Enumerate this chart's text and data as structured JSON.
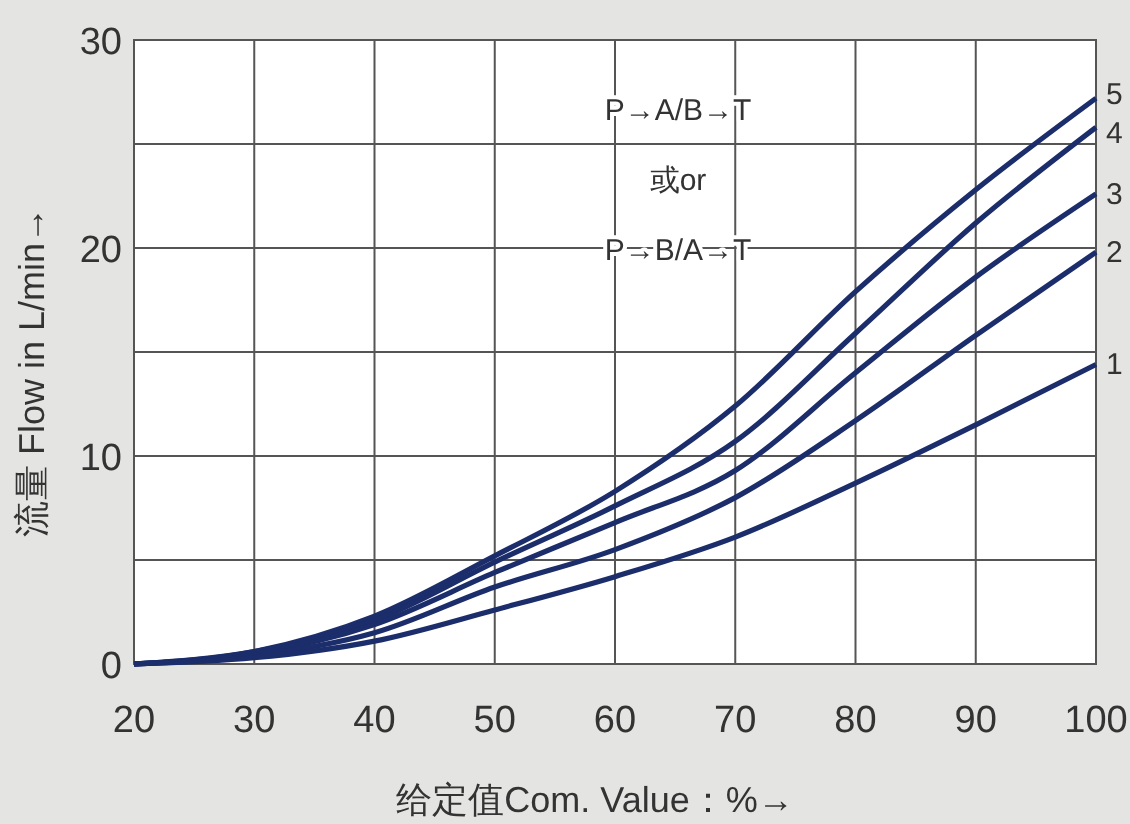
{
  "chart_data": {
    "type": "line",
    "xlabel": "给定值Com. Value：%→",
    "ylabel": "流量 Flow in L/min→",
    "x": [
      20,
      30,
      40,
      50,
      60,
      70,
      80,
      90,
      100
    ],
    "series": [
      {
        "name": "5",
        "color": "#1c2d6b",
        "values": [
          0,
          0.6,
          2.3,
          5.2,
          8.3,
          12.4,
          17.9,
          22.8,
          27.2
        ]
      },
      {
        "name": "4",
        "color": "#1c2d6b",
        "values": [
          0,
          0.6,
          2.1,
          4.9,
          7.6,
          10.7,
          15.9,
          21.2,
          25.8
        ]
      },
      {
        "name": "3",
        "color": "#1c2d6b",
        "values": [
          0,
          0.5,
          1.9,
          4.4,
          6.8,
          9.3,
          14.0,
          18.6,
          22.6
        ]
      },
      {
        "name": "2",
        "color": "#1c2d6b",
        "values": [
          0,
          0.4,
          1.5,
          3.7,
          5.5,
          8.0,
          11.7,
          15.8,
          19.8
        ]
      },
      {
        "name": "1",
        "color": "#1c2d6b",
        "values": [
          0,
          0.3,
          1.1,
          2.6,
          4.2,
          6.1,
          8.7,
          11.5,
          14.4
        ]
      }
    ],
    "xlim": [
      20,
      100
    ],
    "ylim": [
      0,
      30
    ],
    "xticks": [
      20,
      30,
      40,
      50,
      60,
      70,
      80,
      90,
      100
    ],
    "yticks": [
      0,
      {
        "value": 5,
        "label": null
      },
      10,
      {
        "value": 15,
        "label": null
      },
      20,
      {
        "value": 25,
        "label": null
      },
      30
    ],
    "grid": true,
    "legend": false,
    "marker": "none",
    "line_style": "solid",
    "annotations": [
      "P→A/B→T",
      "或or",
      "P→B/A→T"
    ]
  }
}
